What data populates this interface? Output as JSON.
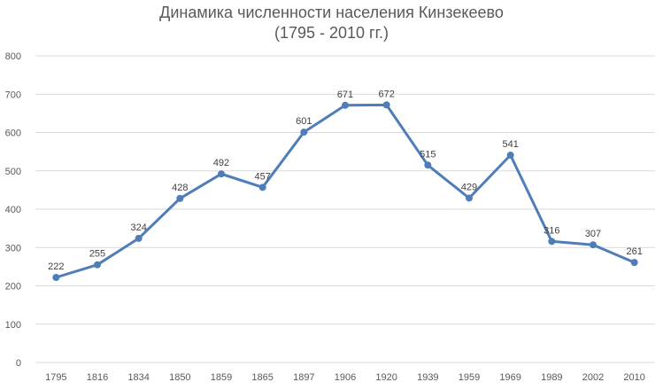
{
  "chart_data": {
    "type": "line",
    "title": "Динамика численности населения Кинзекеево",
    "subtitle": "(1795 - 2010 гг.)",
    "categories": [
      "1795",
      "1816",
      "1834",
      "1850",
      "1859",
      "1865",
      "1897",
      "1906",
      "1920",
      "1939",
      "1959",
      "1969",
      "1989",
      "2002",
      "2010"
    ],
    "series": [
      {
        "values": [
          222,
          255,
          324,
          428,
          492,
          457,
          601,
          671,
          672,
          515,
          429,
          541,
          316,
          307,
          261
        ]
      }
    ],
    "ylim": [
      0,
      800
    ],
    "yticks": [
      "0",
      "100",
      "200",
      "300",
      "400",
      "500",
      "600",
      "700",
      "800"
    ],
    "xlabel": "",
    "ylabel": "",
    "grid": true,
    "legend": "none",
    "color": "#4f7db8"
  }
}
